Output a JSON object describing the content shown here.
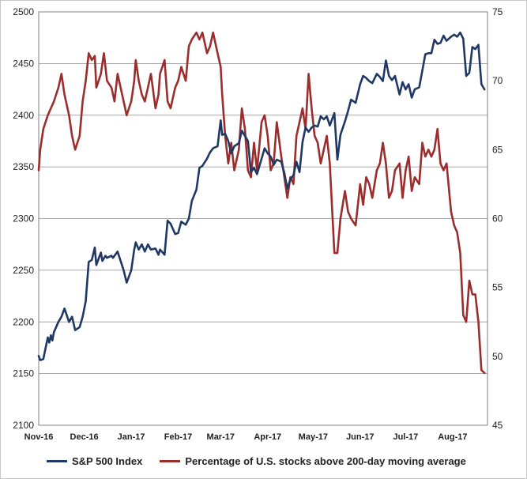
{
  "chart_data": {
    "type": "line",
    "title": "",
    "x_tick_labels": [
      "Nov-16",
      "Dec-16",
      "Jan-17",
      "Feb-17",
      "Mar-17",
      "Apr-17",
      "May-17",
      "Jun-17",
      "Jul-17",
      "Aug-17"
    ],
    "ylim_left": [
      2100,
      2500
    ],
    "yticks_left": [
      2100,
      2150,
      2200,
      2250,
      2300,
      2350,
      2400,
      2450,
      2500
    ],
    "ylim_right": [
      45,
      75
    ],
    "yticks_right": [
      45,
      50,
      55,
      60,
      65,
      70,
      75
    ],
    "grid": true,
    "legend_position": "bottom",
    "series": [
      {
        "name": "S&P 500 Index",
        "axis": "left",
        "color": "#1f3864",
        "points": [
          [
            "2016-11-01",
            2167
          ],
          [
            "2016-11-02",
            2163
          ],
          [
            "2016-11-04",
            2164
          ],
          [
            "2016-11-07",
            2185
          ],
          [
            "2016-11-08",
            2180
          ],
          [
            "2016-11-09",
            2187
          ],
          [
            "2016-11-10",
            2182
          ],
          [
            "2016-11-11",
            2190
          ],
          [
            "2016-11-14",
            2200
          ],
          [
            "2016-11-16",
            2205
          ],
          [
            "2016-11-18",
            2213
          ],
          [
            "2016-11-21",
            2200
          ],
          [
            "2016-11-23",
            2205
          ],
          [
            "2016-11-25",
            2192
          ],
          [
            "2016-11-28",
            2195
          ],
          [
            "2016-11-30",
            2205
          ],
          [
            "2016-12-02",
            2220
          ],
          [
            "2016-12-04",
            2258
          ],
          [
            "2016-12-06",
            2260
          ],
          [
            "2016-12-08",
            2272
          ],
          [
            "2016-12-09",
            2255
          ],
          [
            "2016-12-12",
            2267
          ],
          [
            "2016-12-13",
            2259
          ],
          [
            "2016-12-15",
            2264
          ],
          [
            "2016-12-16",
            2262
          ],
          [
            "2016-12-19",
            2264
          ],
          [
            "2016-12-20",
            2262
          ],
          [
            "2016-12-23",
            2268
          ],
          [
            "2016-12-27",
            2250
          ],
          [
            "2016-12-29",
            2238
          ],
          [
            "2017-01-01",
            2250
          ],
          [
            "2017-01-03",
            2270
          ],
          [
            "2017-01-04",
            2277
          ],
          [
            "2017-01-06",
            2270
          ],
          [
            "2017-01-08",
            2275
          ],
          [
            "2017-01-10",
            2268
          ],
          [
            "2017-01-12",
            2275
          ],
          [
            "2017-01-14",
            2270
          ],
          [
            "2017-01-17",
            2271
          ],
          [
            "2017-01-19",
            2265
          ],
          [
            "2017-01-20",
            2270
          ],
          [
            "2017-01-23",
            2265
          ],
          [
            "2017-01-25",
            2298
          ],
          [
            "2017-01-27",
            2295
          ],
          [
            "2017-01-30",
            2285
          ],
          [
            "2017-02-01",
            2286
          ],
          [
            "2017-02-03",
            2297
          ],
          [
            "2017-02-06",
            2294
          ],
          [
            "2017-02-08",
            2300
          ],
          [
            "2017-02-10",
            2317
          ],
          [
            "2017-02-13",
            2328
          ],
          [
            "2017-02-15",
            2349
          ],
          [
            "2017-02-17",
            2351
          ],
          [
            "2017-02-20",
            2358
          ],
          [
            "2017-02-22",
            2364
          ],
          [
            "2017-02-24",
            2368
          ],
          [
            "2017-02-27",
            2370
          ],
          [
            "2017-03-01",
            2395
          ],
          [
            "2017-03-02",
            2381
          ],
          [
            "2017-03-04",
            2382
          ],
          [
            "2017-03-06",
            2375
          ],
          [
            "2017-03-08",
            2363
          ],
          [
            "2017-03-10",
            2370
          ],
          [
            "2017-03-13",
            2373
          ],
          [
            "2017-03-15",
            2385
          ],
          [
            "2017-03-17",
            2380
          ],
          [
            "2017-03-19",
            2375
          ],
          [
            "2017-03-21",
            2345
          ],
          [
            "2017-03-23",
            2349
          ],
          [
            "2017-03-25",
            2343
          ],
          [
            "2017-03-28",
            2358
          ],
          [
            "2017-03-30",
            2368
          ],
          [
            "2017-04-01",
            2363
          ],
          [
            "2017-04-03",
            2360
          ],
          [
            "2017-04-05",
            2352
          ],
          [
            "2017-04-07",
            2357
          ],
          [
            "2017-04-10",
            2355
          ],
          [
            "2017-04-12",
            2344
          ],
          [
            "2017-04-14",
            2329
          ],
          [
            "2017-04-16",
            2338
          ],
          [
            "2017-04-18",
            2342
          ],
          [
            "2017-04-20",
            2355
          ],
          [
            "2017-04-22",
            2345
          ],
          [
            "2017-04-24",
            2374
          ],
          [
            "2017-04-26",
            2388
          ],
          [
            "2017-04-28",
            2384
          ],
          [
            "2017-04-30",
            2388
          ],
          [
            "2017-05-02",
            2390
          ],
          [
            "2017-05-04",
            2389
          ],
          [
            "2017-05-06",
            2399
          ],
          [
            "2017-05-08",
            2396
          ],
          [
            "2017-05-10",
            2399
          ],
          [
            "2017-05-12",
            2390
          ],
          [
            "2017-05-15",
            2402
          ],
          [
            "2017-05-17",
            2357
          ],
          [
            "2017-05-19",
            2381
          ],
          [
            "2017-05-22",
            2394
          ],
          [
            "2017-05-24",
            2404
          ],
          [
            "2017-05-26",
            2415
          ],
          [
            "2017-05-29",
            2412
          ],
          [
            "2017-06-01",
            2430
          ],
          [
            "2017-06-03",
            2438
          ],
          [
            "2017-06-05",
            2436
          ],
          [
            "2017-06-07",
            2433
          ],
          [
            "2017-06-09",
            2431
          ],
          [
            "2017-06-12",
            2440
          ],
          [
            "2017-06-14",
            2437
          ],
          [
            "2017-06-16",
            2433
          ],
          [
            "2017-06-18",
            2453
          ],
          [
            "2017-06-20",
            2438
          ],
          [
            "2017-06-22",
            2434
          ],
          [
            "2017-06-24",
            2438
          ],
          [
            "2017-06-27",
            2420
          ],
          [
            "2017-06-29",
            2432
          ],
          [
            "2017-07-01",
            2425
          ],
          [
            "2017-07-03",
            2430
          ],
          [
            "2017-07-05",
            2417
          ],
          [
            "2017-07-07",
            2425
          ],
          [
            "2017-07-10",
            2427
          ],
          [
            "2017-07-12",
            2443
          ],
          [
            "2017-07-14",
            2459
          ],
          [
            "2017-07-16",
            2460
          ],
          [
            "2017-07-18",
            2460
          ],
          [
            "2017-07-20",
            2473
          ],
          [
            "2017-07-22",
            2469
          ],
          [
            "2017-07-24",
            2470
          ],
          [
            "2017-07-26",
            2477
          ],
          [
            "2017-07-28",
            2472
          ],
          [
            "2017-07-31",
            2476
          ],
          [
            "2017-08-02",
            2478
          ],
          [
            "2017-08-04",
            2476
          ],
          [
            "2017-08-06",
            2480
          ],
          [
            "2017-08-08",
            2474
          ],
          [
            "2017-08-10",
            2438
          ],
          [
            "2017-08-12",
            2441
          ],
          [
            "2017-08-14",
            2466
          ],
          [
            "2017-08-16",
            2464
          ],
          [
            "2017-08-18",
            2468
          ],
          [
            "2017-08-20",
            2430
          ],
          [
            "2017-08-22",
            2425
          ]
        ]
      },
      {
        "name": "Percentage of U.S. stocks above 200-day moving average",
        "axis": "right",
        "color": "#9b2d2d",
        "points": [
          [
            "2016-11-01",
            63.5
          ],
          [
            "2016-11-02",
            65.0
          ],
          [
            "2016-11-04",
            66.5
          ],
          [
            "2016-11-07",
            67.5
          ],
          [
            "2016-11-09",
            68.0
          ],
          [
            "2016-11-11",
            68.5
          ],
          [
            "2016-11-14",
            69.5
          ],
          [
            "2016-11-16",
            70.5
          ],
          [
            "2016-11-18",
            69.0
          ],
          [
            "2016-11-21",
            67.5
          ],
          [
            "2016-11-23",
            66.0
          ],
          [
            "2016-11-25",
            65.0
          ],
          [
            "2016-11-28",
            66.0
          ],
          [
            "2016-11-30",
            68.5
          ],
          [
            "2016-12-02",
            70.0
          ],
          [
            "2016-12-04",
            72.0
          ],
          [
            "2016-12-06",
            71.5
          ],
          [
            "2016-12-08",
            71.8
          ],
          [
            "2016-12-09",
            69.5
          ],
          [
            "2016-12-12",
            70.5
          ],
          [
            "2016-12-14",
            72.0
          ],
          [
            "2016-12-16",
            70.0
          ],
          [
            "2016-12-19",
            69.5
          ],
          [
            "2016-12-21",
            68.5
          ],
          [
            "2016-12-23",
            70.5
          ],
          [
            "2016-12-27",
            68.5
          ],
          [
            "2016-12-29",
            67.5
          ],
          [
            "2017-01-01",
            68.5
          ],
          [
            "2017-01-03",
            70.0
          ],
          [
            "2017-01-04",
            71.5
          ],
          [
            "2017-01-06",
            70.0
          ],
          [
            "2017-01-08",
            69.0
          ],
          [
            "2017-01-10",
            68.5
          ],
          [
            "2017-01-12",
            69.5
          ],
          [
            "2017-01-14",
            70.5
          ],
          [
            "2017-01-17",
            68.0
          ],
          [
            "2017-01-19",
            69.0
          ],
          [
            "2017-01-20",
            70.5
          ],
          [
            "2017-01-23",
            71.5
          ],
          [
            "2017-01-25",
            68.5
          ],
          [
            "2017-01-27",
            68.0
          ],
          [
            "2017-01-30",
            69.5
          ],
          [
            "2017-02-01",
            70.0
          ],
          [
            "2017-02-03",
            71.0
          ],
          [
            "2017-02-06",
            70.0
          ],
          [
            "2017-02-08",
            72.5
          ],
          [
            "2017-02-10",
            73.0
          ],
          [
            "2017-02-13",
            73.5
          ],
          [
            "2017-02-15",
            73.0
          ],
          [
            "2017-02-17",
            73.5
          ],
          [
            "2017-02-20",
            72.0
          ],
          [
            "2017-02-22",
            72.5
          ],
          [
            "2017-02-24",
            73.5
          ],
          [
            "2017-02-27",
            72.0
          ],
          [
            "2017-03-01",
            71.0
          ],
          [
            "2017-03-02",
            69.0
          ],
          [
            "2017-03-04",
            66.0
          ],
          [
            "2017-03-06",
            64.0
          ],
          [
            "2017-03-08",
            65.5
          ],
          [
            "2017-03-10",
            63.5
          ],
          [
            "2017-03-13",
            65.0
          ],
          [
            "2017-03-15",
            68.0
          ],
          [
            "2017-03-17",
            66.5
          ],
          [
            "2017-03-19",
            63.5
          ],
          [
            "2017-03-21",
            63.0
          ],
          [
            "2017-03-23",
            65.5
          ],
          [
            "2017-03-25",
            63.5
          ],
          [
            "2017-03-28",
            67.0
          ],
          [
            "2017-03-30",
            67.5
          ],
          [
            "2017-04-01",
            66.0
          ],
          [
            "2017-04-03",
            63.5
          ],
          [
            "2017-04-05",
            64.0
          ],
          [
            "2017-04-07",
            67.0
          ],
          [
            "2017-04-10",
            64.5
          ],
          [
            "2017-04-12",
            63.0
          ],
          [
            "2017-04-14",
            61.5
          ],
          [
            "2017-04-16",
            63.0
          ],
          [
            "2017-04-18",
            62.5
          ],
          [
            "2017-04-20",
            66.0
          ],
          [
            "2017-04-22",
            67.0
          ],
          [
            "2017-04-24",
            68.0
          ],
          [
            "2017-04-26",
            66.5
          ],
          [
            "2017-04-28",
            70.5
          ],
          [
            "2017-04-30",
            68.0
          ],
          [
            "2017-05-02",
            66.0
          ],
          [
            "2017-05-04",
            65.5
          ],
          [
            "2017-05-06",
            64.0
          ],
          [
            "2017-05-08",
            65.0
          ],
          [
            "2017-05-10",
            66.0
          ],
          [
            "2017-05-12",
            64.0
          ],
          [
            "2017-05-15",
            57.5
          ],
          [
            "2017-05-17",
            57.5
          ],
          [
            "2017-05-19",
            60.0
          ],
          [
            "2017-05-22",
            62.0
          ],
          [
            "2017-05-24",
            60.5
          ],
          [
            "2017-05-26",
            60.0
          ],
          [
            "2017-05-29",
            59.5
          ],
          [
            "2017-06-01",
            62.5
          ],
          [
            "2017-06-03",
            61.0
          ],
          [
            "2017-06-05",
            63.0
          ],
          [
            "2017-06-07",
            62.5
          ],
          [
            "2017-06-09",
            61.5
          ],
          [
            "2017-06-12",
            63.5
          ],
          [
            "2017-06-14",
            64.0
          ],
          [
            "2017-06-16",
            65.5
          ],
          [
            "2017-06-18",
            64.0
          ],
          [
            "2017-06-20",
            61.5
          ],
          [
            "2017-06-22",
            62.0
          ],
          [
            "2017-06-24",
            63.5
          ],
          [
            "2017-06-27",
            64.0
          ],
          [
            "2017-06-29",
            61.5
          ],
          [
            "2017-07-01",
            63.5
          ],
          [
            "2017-07-03",
            64.5
          ],
          [
            "2017-07-05",
            62.0
          ],
          [
            "2017-07-07",
            63.0
          ],
          [
            "2017-07-10",
            62.5
          ],
          [
            "2017-07-12",
            65.5
          ],
          [
            "2017-07-14",
            64.5
          ],
          [
            "2017-07-16",
            65.0
          ],
          [
            "2017-07-18",
            64.5
          ],
          [
            "2017-07-20",
            65.0
          ],
          [
            "2017-07-22",
            66.5
          ],
          [
            "2017-07-24",
            64.0
          ],
          [
            "2017-07-26",
            63.5
          ],
          [
            "2017-07-28",
            64.0
          ],
          [
            "2017-07-31",
            60.5
          ],
          [
            "2017-08-02",
            59.5
          ],
          [
            "2017-08-04",
            59.0
          ],
          [
            "2017-08-06",
            57.5
          ],
          [
            "2017-08-08",
            53.0
          ],
          [
            "2017-08-10",
            52.5
          ],
          [
            "2017-08-12",
            55.5
          ],
          [
            "2017-08-14",
            54.5
          ],
          [
            "2017-08-16",
            54.5
          ],
          [
            "2017-08-18",
            52.5
          ],
          [
            "2017-08-20",
            49.0
          ],
          [
            "2017-08-22",
            48.8
          ]
        ]
      }
    ]
  }
}
